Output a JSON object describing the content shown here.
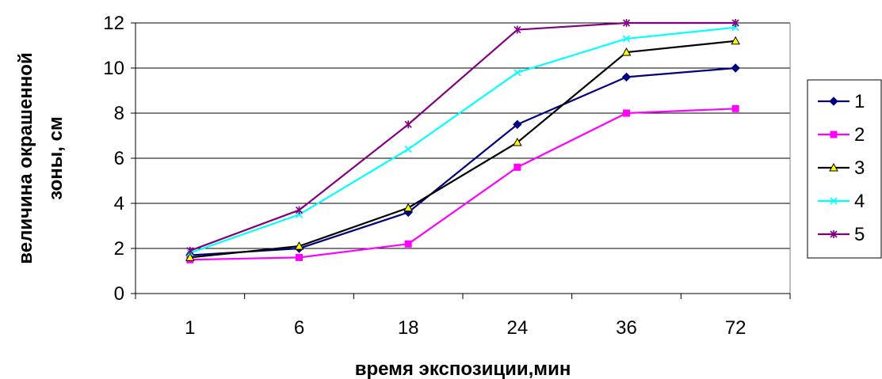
{
  "chart_data": {
    "type": "line",
    "categories": [
      "1",
      "6",
      "18",
      "24",
      "36",
      "72"
    ],
    "xlabel": "время экспозиции,мин",
    "ylabel_lines": [
      "величина окрашенной",
      "зоны, см"
    ],
    "ylim": [
      0,
      12
    ],
    "yticks": [
      "0",
      "2",
      "4",
      "6",
      "8",
      "10",
      "12"
    ],
    "grid": "horizontal",
    "legend_position": "right",
    "series": [
      {
        "name": "1",
        "color": "#000080",
        "marker": "diamond",
        "values": [
          1.7,
          2.0,
          3.6,
          7.5,
          9.6,
          10.0
        ]
      },
      {
        "name": "2",
        "color": "#ff00ff",
        "marker": "square",
        "values": [
          1.5,
          1.6,
          2.2,
          5.6,
          8.0,
          8.2
        ]
      },
      {
        "name": "3",
        "color": "#000000",
        "marker": "triangle",
        "marker_fill": "#ffff00",
        "values": [
          1.6,
          2.1,
          3.8,
          6.7,
          10.7,
          11.2
        ]
      },
      {
        "name": "4",
        "color": "#00ffff",
        "marker": "x",
        "values": [
          1.8,
          3.5,
          6.4,
          9.8,
          11.3,
          11.8
        ]
      },
      {
        "name": "5",
        "color": "#800080",
        "marker": "star",
        "values": [
          1.9,
          3.7,
          7.5,
          11.7,
          12.0,
          12.0
        ]
      }
    ]
  }
}
